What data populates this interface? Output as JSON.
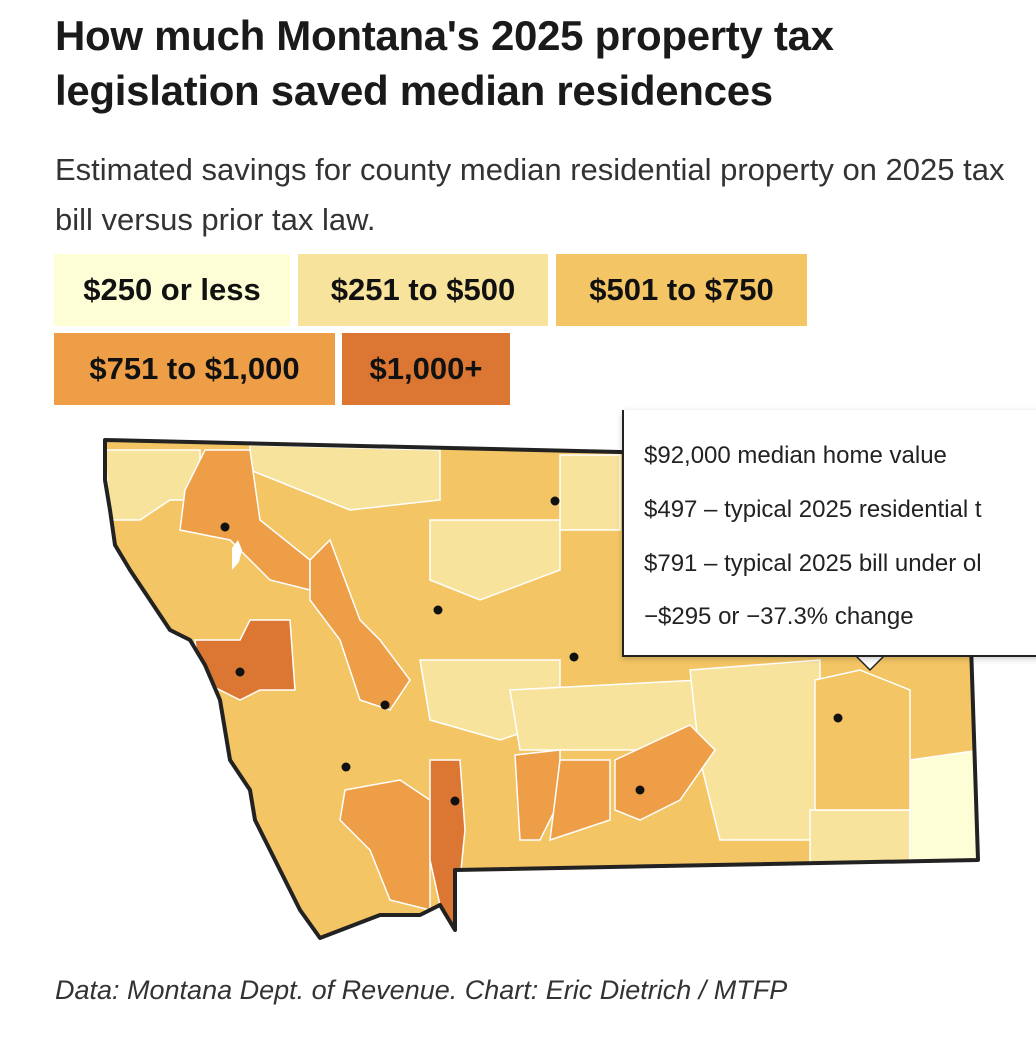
{
  "title": "How much Montana's 2025 property tax legislation saved median residences",
  "subtitle": "Estimated savings for county median residential property on 2025 tax bill versus prior tax law.",
  "legend": [
    {
      "label": "$250 or less",
      "color": "#fefed6"
    },
    {
      "label": "$251 to $500",
      "color": "#f8e39c"
    },
    {
      "label": "$501 to $750",
      "color": "#f3c564"
    },
    {
      "label": "$751 to $1,000",
      "color": "#ed9e47"
    },
    {
      "label": "$1,000+",
      "color": "#dc7733"
    }
  ],
  "tooltip": {
    "lines": [
      "$92,000 median home value",
      "$497 – typical 2025 residential t",
      "$791 – typical 2025 bill under ol",
      "−$295 or −37.3% change"
    ]
  },
  "credit": "Data: Montana Dept. of Revenue. Chart: Eric Dietrich / MTFP"
}
